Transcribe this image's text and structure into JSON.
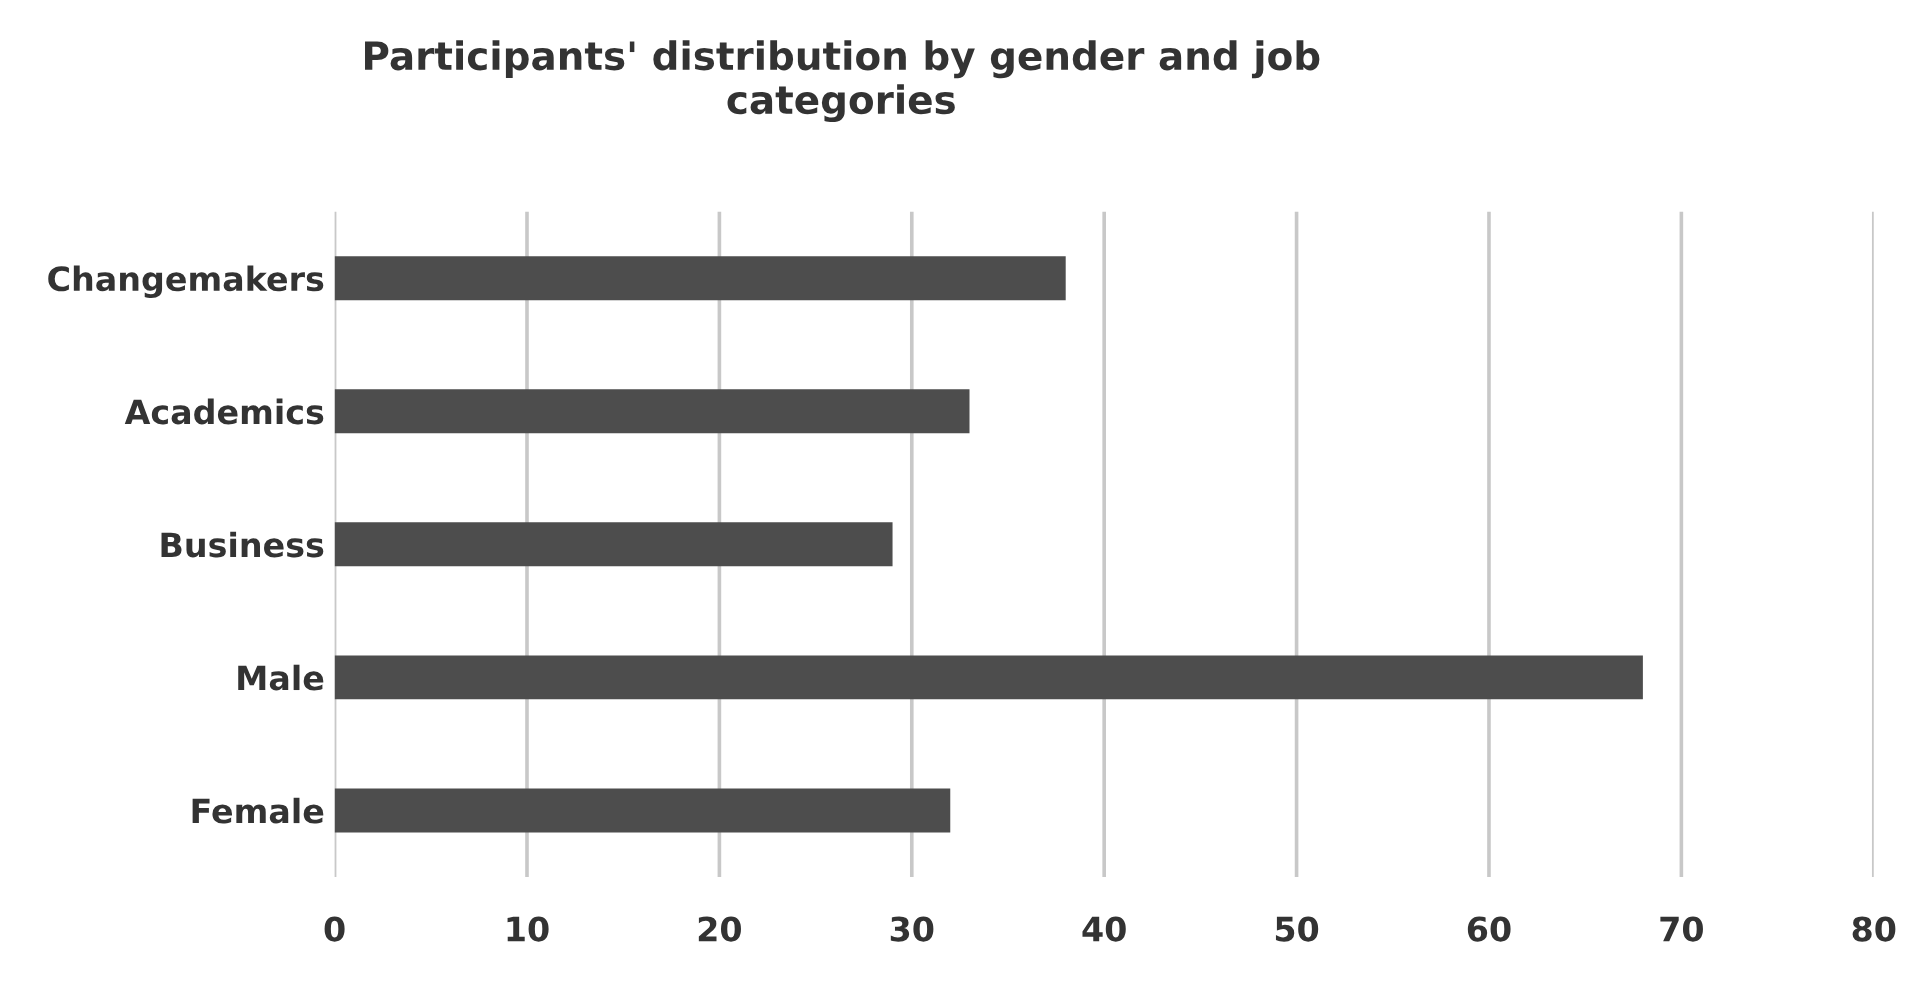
{
  "chart_data": {
    "type": "bar",
    "orientation": "horizontal",
    "title": "Participants' distribution by gender and job\ncategories",
    "categories": [
      "Changemakers",
      "Academics",
      "Business",
      "Male",
      "Female"
    ],
    "values": [
      38,
      33,
      29,
      68,
      32
    ],
    "color": "#4d4d4d",
    "xlim": [
      0,
      80
    ],
    "xticks": [
      0,
      10,
      20,
      30,
      40,
      50,
      60,
      70,
      80
    ],
    "grid": "x"
  }
}
